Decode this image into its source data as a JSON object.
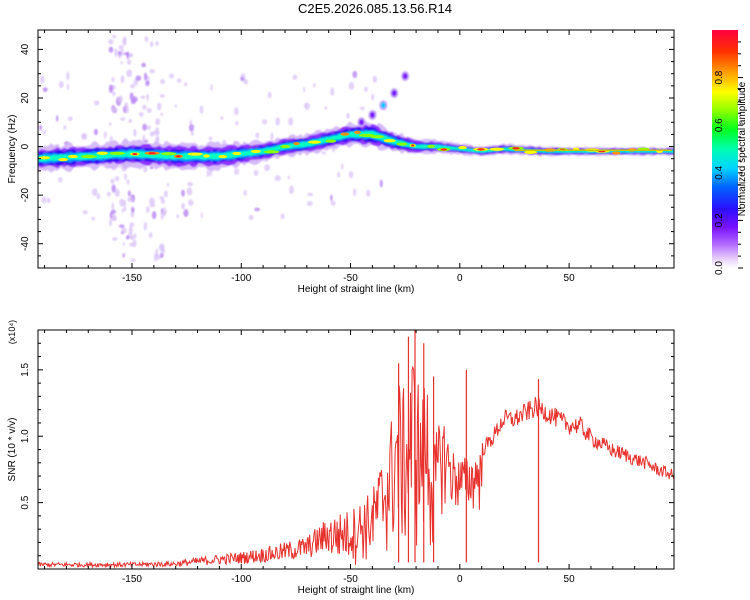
{
  "title": "C2E5.2026.085.13.56.R14",
  "chart_data": [
    {
      "type": "heatmap",
      "xlabel": "Height of straight line (km)",
      "ylabel": "Frequency (Hz)",
      "xlim": [
        -193,
        98
      ],
      "ylim": [
        -50,
        48
      ],
      "x_ticks": [
        -150,
        -100,
        -50,
        0,
        50
      ],
      "y_ticks": [
        -40,
        -20,
        0,
        20,
        40
      ],
      "colorbar": {
        "label": "Normalized spectral amplitude",
        "range": [
          0,
          1
        ],
        "ticks": [
          0.0,
          0.2,
          0.4,
          0.6,
          0.8
        ],
        "tick_labels": [
          "0.0",
          "0.2",
          "0.4",
          "0.6",
          "0.8"
        ]
      },
      "ridge": {
        "x": [
          -193,
          -170,
          -150,
          -130,
          -110,
          -100,
          -90,
          -80,
          -70,
          -60,
          -50,
          -40,
          -30,
          -20,
          -10,
          0,
          10,
          20,
          40,
          60,
          80,
          98
        ],
        "freq": [
          -5,
          -4,
          -3,
          -4,
          -4,
          -3,
          -2,
          0,
          1,
          3,
          5,
          5,
          2,
          0,
          0,
          -1,
          -2,
          -1,
          -2,
          -2,
          -2,
          -2
        ],
        "spread": [
          5,
          5,
          5,
          5,
          5,
          4.5,
          4,
          4,
          4,
          4,
          4.5,
          5,
          4,
          3,
          2.5,
          2,
          2,
          2,
          1.8,
          1.6,
          1.6,
          1.6
        ]
      },
      "branch": {
        "x": [
          -45,
          -40,
          -35,
          -30,
          -25
        ],
        "freq": [
          10,
          13,
          17,
          22,
          29
        ]
      }
    },
    {
      "type": "line",
      "xlabel": "Height of straight line (km)",
      "ylabel": "SNR (10 * v/v)",
      "y_multiplier": "(x10⁴)",
      "xlim": [
        -193,
        98
      ],
      "ylim": [
        0,
        1.8
      ],
      "x_ticks": [
        -150,
        -100,
        -50,
        0,
        50
      ],
      "y_ticks": [
        0.5,
        1.0,
        1.5
      ],
      "y_tick_labels": [
        "0.5",
        "1.0",
        "1.5"
      ],
      "series": [
        {
          "color": "#e8312c",
          "envelope_x": [
            -193,
            -170,
            -150,
            -130,
            -115,
            -100,
            -85,
            -70,
            -60,
            -50,
            -40,
            -33,
            -28,
            -24,
            -21,
            -18,
            -15,
            -12,
            -8,
            -3,
            0,
            5,
            10,
            15,
            20,
            25,
            30,
            35,
            40,
            45,
            50,
            55,
            60,
            65,
            70,
            75,
            80,
            85,
            90,
            98
          ],
          "envelope_y": [
            0.05,
            0.05,
            0.05,
            0.06,
            0.1,
            0.13,
            0.18,
            0.25,
            0.4,
            0.45,
            0.6,
            1.0,
            1.45,
            1.3,
            1.75,
            1.3,
            1.5,
            0.95,
            1.2,
            0.9,
            0.85,
            0.85,
            0.95,
            1.05,
            1.2,
            1.2,
            1.25,
            1.3,
            1.25,
            1.2,
            1.15,
            1.15,
            1.05,
            1.0,
            0.95,
            0.92,
            0.88,
            0.85,
            0.8,
            0.75
          ],
          "spikes": [
            {
              "x": -23.5,
              "y": 1.75
            },
            {
              "x": -20.5,
              "y": 1.8
            },
            {
              "x": -16.5,
              "y": 1.7
            },
            {
              "x": -28,
              "y": 1.55
            },
            {
              "x": -12,
              "y": 1.45
            },
            {
              "x": 3,
              "y": 1.5
            },
            {
              "x": 36,
              "y": 1.43
            }
          ]
        }
      ]
    }
  ]
}
